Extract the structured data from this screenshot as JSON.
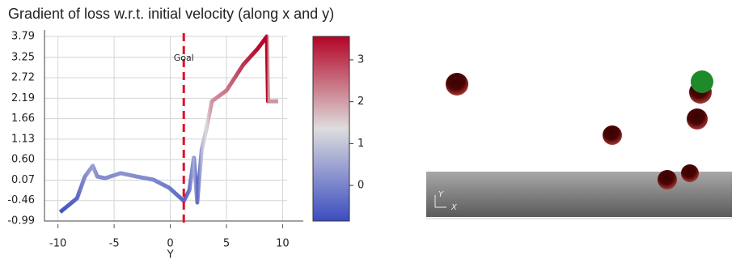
{
  "chart_data": {
    "type": "line",
    "title": "Gradient of loss w.r.t. initial velocity (along x and y)",
    "x_label": "Y",
    "x": [
      -9.8,
      -8.3,
      -7.6,
      -6.9,
      -6.5,
      -5.8,
      -4.4,
      -3.0,
      -1.5,
      -0.1,
      1.2,
      1.7,
      2.1,
      2.4,
      2.8,
      3.2,
      3.7,
      5.0,
      6.5,
      7.8,
      8.6,
      8.7,
      9.6
    ],
    "values": [
      -0.76,
      -0.4,
      0.16,
      0.44,
      0.16,
      0.12,
      0.25,
      0.16,
      0.08,
      -0.13,
      -0.47,
      -0.19,
      0.65,
      -0.51,
      0.86,
      1.38,
      2.11,
      2.39,
      3.06,
      3.48,
      3.79,
      2.11,
      2.11
    ],
    "xlim": [
      -11.2,
      10.4
    ],
    "xticks": [
      -10,
      -5,
      0,
      5,
      10
    ],
    "ylim": [
      -0.99,
      3.79
    ],
    "yticks": [
      3.79,
      3.25,
      2.72,
      2.19,
      1.66,
      1.13,
      {
        "value": 0.6,
        "label": "0.60"
      },
      0.07,
      -0.46,
      -0.99
    ],
    "grid": true,
    "colormap": [
      "#3b4cc0",
      "#dddddd",
      "#b40426"
    ],
    "clim": [
      -0.85,
      3.56
    ],
    "cticks": [
      0,
      1,
      2,
      3
    ],
    "annotations": [
      {
        "text": "Goal",
        "x": 1.2,
        "color": "#e0102a"
      }
    ]
  },
  "scene": {
    "axis_labels": {
      "y": "Y",
      "x": "X"
    }
  }
}
